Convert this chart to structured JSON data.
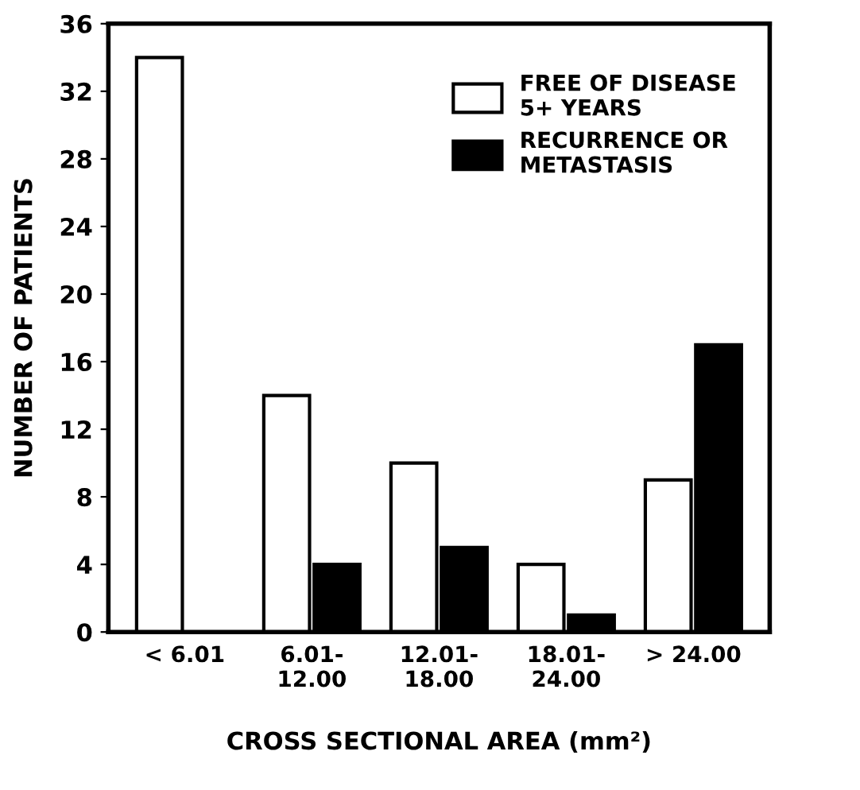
{
  "chart_data": {
    "type": "bar",
    "xlabel": "CROSS SECTIONAL AREA (mm²)",
    "ylabel": "NUMBER OF PATIENTS",
    "categories": [
      "< 6.01",
      "6.01-\n12.00",
      "12.01-\n18.00",
      "18.01-\n24.00",
      "> 24.00"
    ],
    "series": [
      {
        "name": "FREE OF DISEASE\n5+ YEARS",
        "color": "#ffffff",
        "values": [
          34,
          14,
          10,
          4,
          9
        ]
      },
      {
        "name": "RECURRENCE OR\nMETASTASIS",
        "color": "#000000",
        "values": [
          null,
          4,
          5,
          1,
          17
        ]
      }
    ],
    "ylim": [
      0,
      36
    ],
    "yticks": [
      0,
      4,
      8,
      12,
      16,
      20,
      24,
      28,
      32,
      36
    ],
    "grid": false,
    "legend": "top right"
  }
}
